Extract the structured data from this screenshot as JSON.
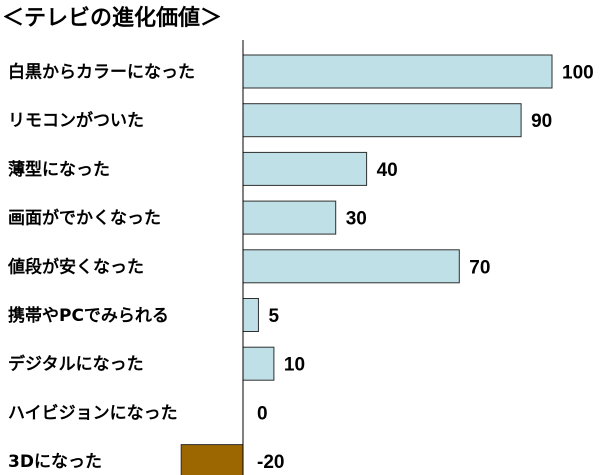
{
  "chart_data": {
    "type": "bar",
    "orientation": "horizontal",
    "title": "＜テレビの進化価値＞",
    "categories": [
      "白黒からカラーになった",
      "リモコンがついた",
      "薄型になった",
      "画面がでかくなった",
      "値段が安くなった",
      "携帯やPCでみられる",
      "デジタルになった",
      "ハイビジョンになった",
      "3Dになった"
    ],
    "values": [
      100,
      90,
      40,
      30,
      70,
      5,
      10,
      0,
      -20
    ],
    "xlim": [
      -20,
      100
    ],
    "grid": false,
    "legend": "none",
    "colors": {
      "positive": "#bfe0e6",
      "negative": "#9c6600",
      "border": "#2f2f2f",
      "axis": "#000000"
    }
  }
}
